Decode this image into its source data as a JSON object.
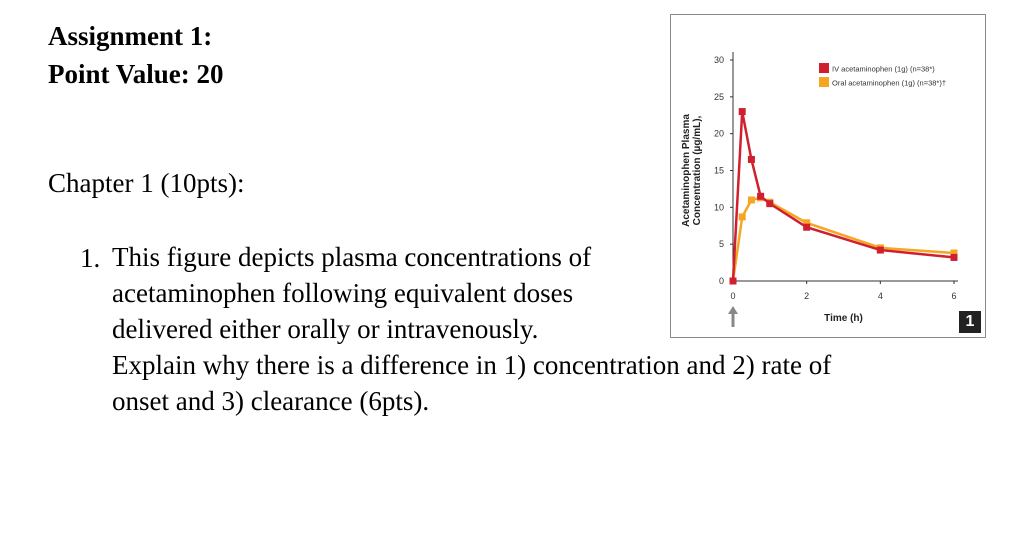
{
  "document": {
    "title_line1": "Assignment 1:",
    "title_line2": "Point Value: 20",
    "chapter": "Chapter 1 (10pts):",
    "question_number": "1.",
    "question_lines": [
      "This figure depicts plasma concentrations of",
      "acetaminophen following equivalent doses",
      "delivered either orally or intravenously.",
      "Explain why there is a difference in 1) concentration and 2) rate of",
      "onset and 3) clearance (6pts)."
    ]
  },
  "figure": {
    "badge": "1",
    "arrow_icon": "up-arrow-icon"
  },
  "chart_data": {
    "type": "line",
    "xlabel": "Time (h)",
    "ylabel_line1": "Acetaminophen Plasma",
    "ylabel_line2": "Concentration (µg/mL),",
    "xlim": [
      0,
      6
    ],
    "ylim": [
      0,
      30
    ],
    "x_ticks": [
      "0",
      "2",
      "4",
      "6"
    ],
    "y_ticks": [
      "0",
      "5",
      "10",
      "15",
      "20",
      "25",
      "30"
    ],
    "legend_position": "top-right",
    "series": [
      {
        "name": "IV acetaminophen (1g) (n=38*)",
        "color": "#d0202e",
        "x": [
          0,
          0.25,
          0.5,
          0.75,
          1,
          2,
          4,
          6
        ],
        "y": [
          0,
          23,
          16.5,
          11.5,
          10.5,
          7.3,
          4.2,
          3.2
        ]
      },
      {
        "name": "Oral acetaminophen (1g) (n=38*)†",
        "color": "#f5a623",
        "x": [
          0,
          0.25,
          0.5,
          0.75,
          1,
          2,
          4,
          6
        ],
        "y": [
          0,
          8.7,
          11,
          11.3,
          10.7,
          7.9,
          4.5,
          3.8
        ]
      }
    ]
  }
}
